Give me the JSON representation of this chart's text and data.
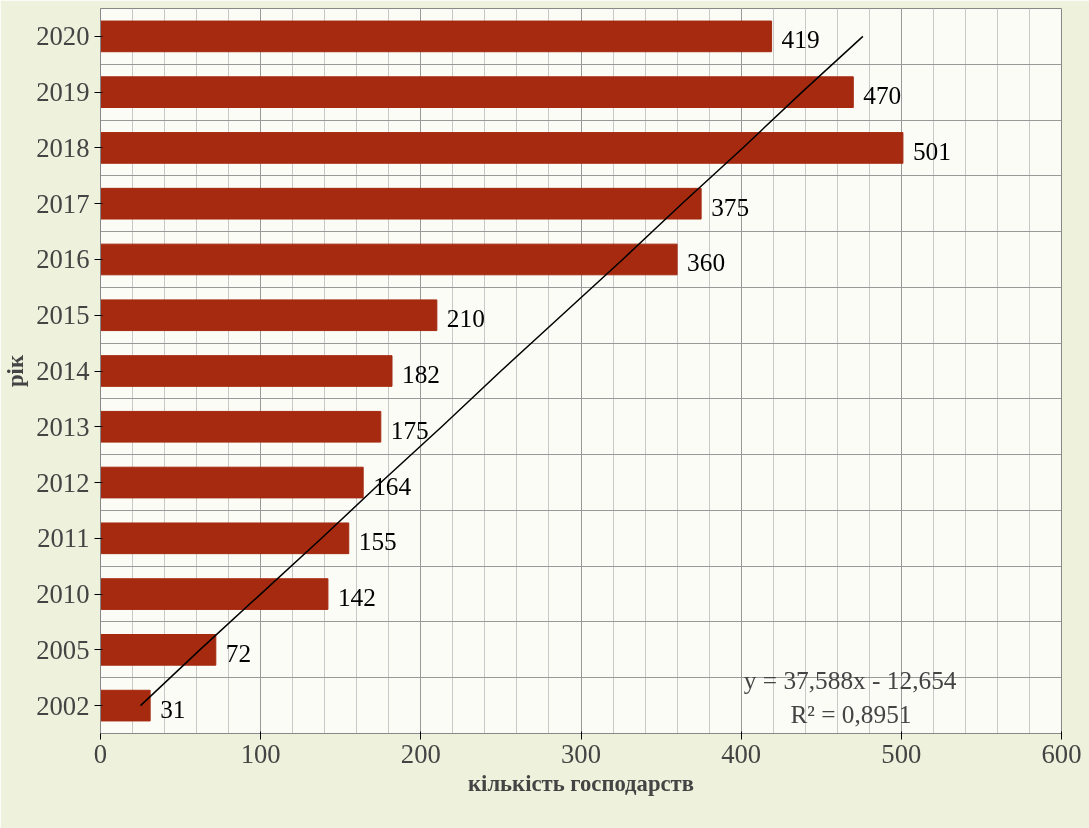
{
  "chart_data": {
    "type": "bar",
    "orientation": "horizontal",
    "xlabel": "кількість господарств",
    "ylabel": "рік",
    "categories": [
      "2020",
      "2019",
      "2018",
      "2017",
      "2016",
      "2015",
      "2014",
      "2013",
      "2012",
      "2011",
      "2010",
      "2005",
      "2002"
    ],
    "series": [
      {
        "color": "#a52a10",
        "values": [
          419,
          470,
          501,
          375,
          360,
          210,
          182,
          175,
          164,
          155,
          142,
          72,
          31
        ],
        "value_labels": [
          "419",
          "470",
          "501",
          "375",
          "360",
          "210",
          "182",
          "175",
          "164",
          "155",
          "142",
          "72",
          "31"
        ]
      },
      {
        "type": "line",
        "color": "#000000",
        "values": [
          476,
          438,
          401,
          363,
          326,
          288,
          250,
          213,
          175,
          138,
          100,
          62,
          25
        ]
      }
    ],
    "xlim": [
      0,
      600
    ],
    "xticks": [
      0,
      100,
      200,
      300,
      400,
      500,
      600
    ],
    "grid": true,
    "annotations": [
      "y = 37,588x - 12,654",
      "R² = 0,8951"
    ]
  }
}
